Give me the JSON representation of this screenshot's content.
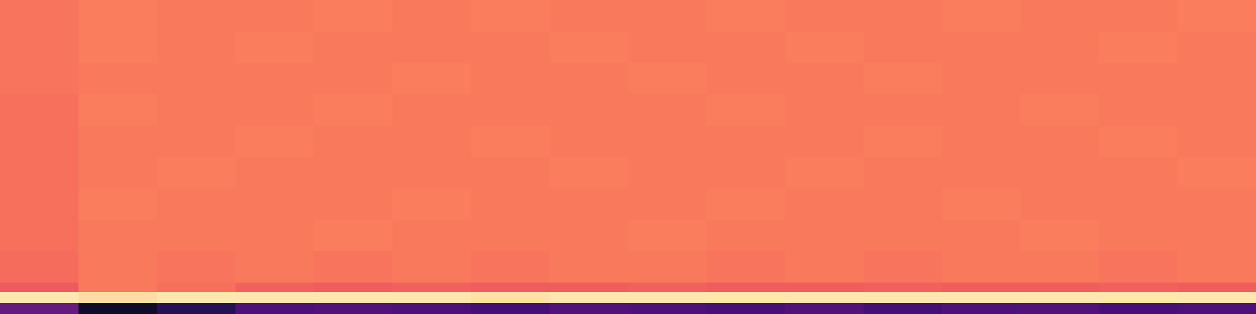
{
  "chart_data": {
    "type": "heatmap",
    "color": "magma",
    "color_range": [
      0,
      1
    ],
    "tick_labels": false,
    "x_edges": [
      0,
      100,
      200,
      300,
      400,
      500,
      600,
      700,
      800,
      900,
      1000,
      1100,
      1200,
      1300,
      1400,
      1500,
      1600
    ],
    "y_edges": [
      0,
      40,
      80,
      120,
      160,
      200,
      240,
      280,
      320,
      360,
      372,
      386,
      400
    ],
    "xlim": [
      0,
      1600
    ],
    "ylim": [
      400,
      0
    ],
    "cells": [
      [
        0.71,
        0.73,
        0.72,
        0.72,
        0.73,
        0.72,
        0.73,
        0.72,
        0.72,
        0.73,
        0.72,
        0.72,
        0.73,
        0.72,
        0.72,
        0.73
      ],
      [
        0.71,
        0.73,
        0.72,
        0.73,
        0.72,
        0.72,
        0.72,
        0.73,
        0.72,
        0.72,
        0.73,
        0.72,
        0.72,
        0.72,
        0.73,
        0.72
      ],
      [
        0.71,
        0.72,
        0.72,
        0.72,
        0.72,
        0.73,
        0.72,
        0.72,
        0.73,
        0.72,
        0.72,
        0.73,
        0.72,
        0.72,
        0.72,
        0.72
      ],
      [
        0.7,
        0.73,
        0.72,
        0.72,
        0.73,
        0.72,
        0.72,
        0.72,
        0.72,
        0.73,
        0.72,
        0.72,
        0.72,
        0.73,
        0.72,
        0.72
      ],
      [
        0.7,
        0.72,
        0.72,
        0.73,
        0.72,
        0.72,
        0.73,
        0.72,
        0.72,
        0.72,
        0.72,
        0.73,
        0.72,
        0.72,
        0.73,
        0.72
      ],
      [
        0.7,
        0.72,
        0.73,
        0.72,
        0.72,
        0.72,
        0.72,
        0.73,
        0.72,
        0.72,
        0.73,
        0.72,
        0.72,
        0.72,
        0.72,
        0.73
      ],
      [
        0.7,
        0.73,
        0.72,
        0.72,
        0.72,
        0.73,
        0.72,
        0.72,
        0.72,
        0.73,
        0.72,
        0.72,
        0.73,
        0.72,
        0.72,
        0.72
      ],
      [
        0.7,
        0.72,
        0.72,
        0.72,
        0.73,
        0.72,
        0.72,
        0.72,
        0.73,
        0.72,
        0.72,
        0.72,
        0.72,
        0.73,
        0.72,
        0.72
      ],
      [
        0.69,
        0.72,
        0.71,
        0.72,
        0.71,
        0.72,
        0.71,
        0.72,
        0.72,
        0.71,
        0.72,
        0.71,
        0.72,
        0.72,
        0.71,
        0.72
      ],
      [
        0.65,
        0.72,
        0.7,
        0.67,
        0.66,
        0.67,
        0.66,
        0.66,
        0.67,
        0.66,
        0.66,
        0.67,
        0.66,
        0.66,
        0.67,
        0.66
      ],
      [
        0.95,
        0.93,
        0.95,
        0.95,
        0.95,
        0.95,
        0.94,
        0.95,
        0.95,
        0.95,
        0.95,
        0.95,
        0.95,
        0.95,
        0.95,
        0.95
      ],
      [
        0.3,
        0.08,
        0.15,
        0.24,
        0.25,
        0.24,
        0.22,
        0.25,
        0.24,
        0.23,
        0.25,
        0.22,
        0.24,
        0.25,
        0.23,
        0.24
      ]
    ]
  }
}
